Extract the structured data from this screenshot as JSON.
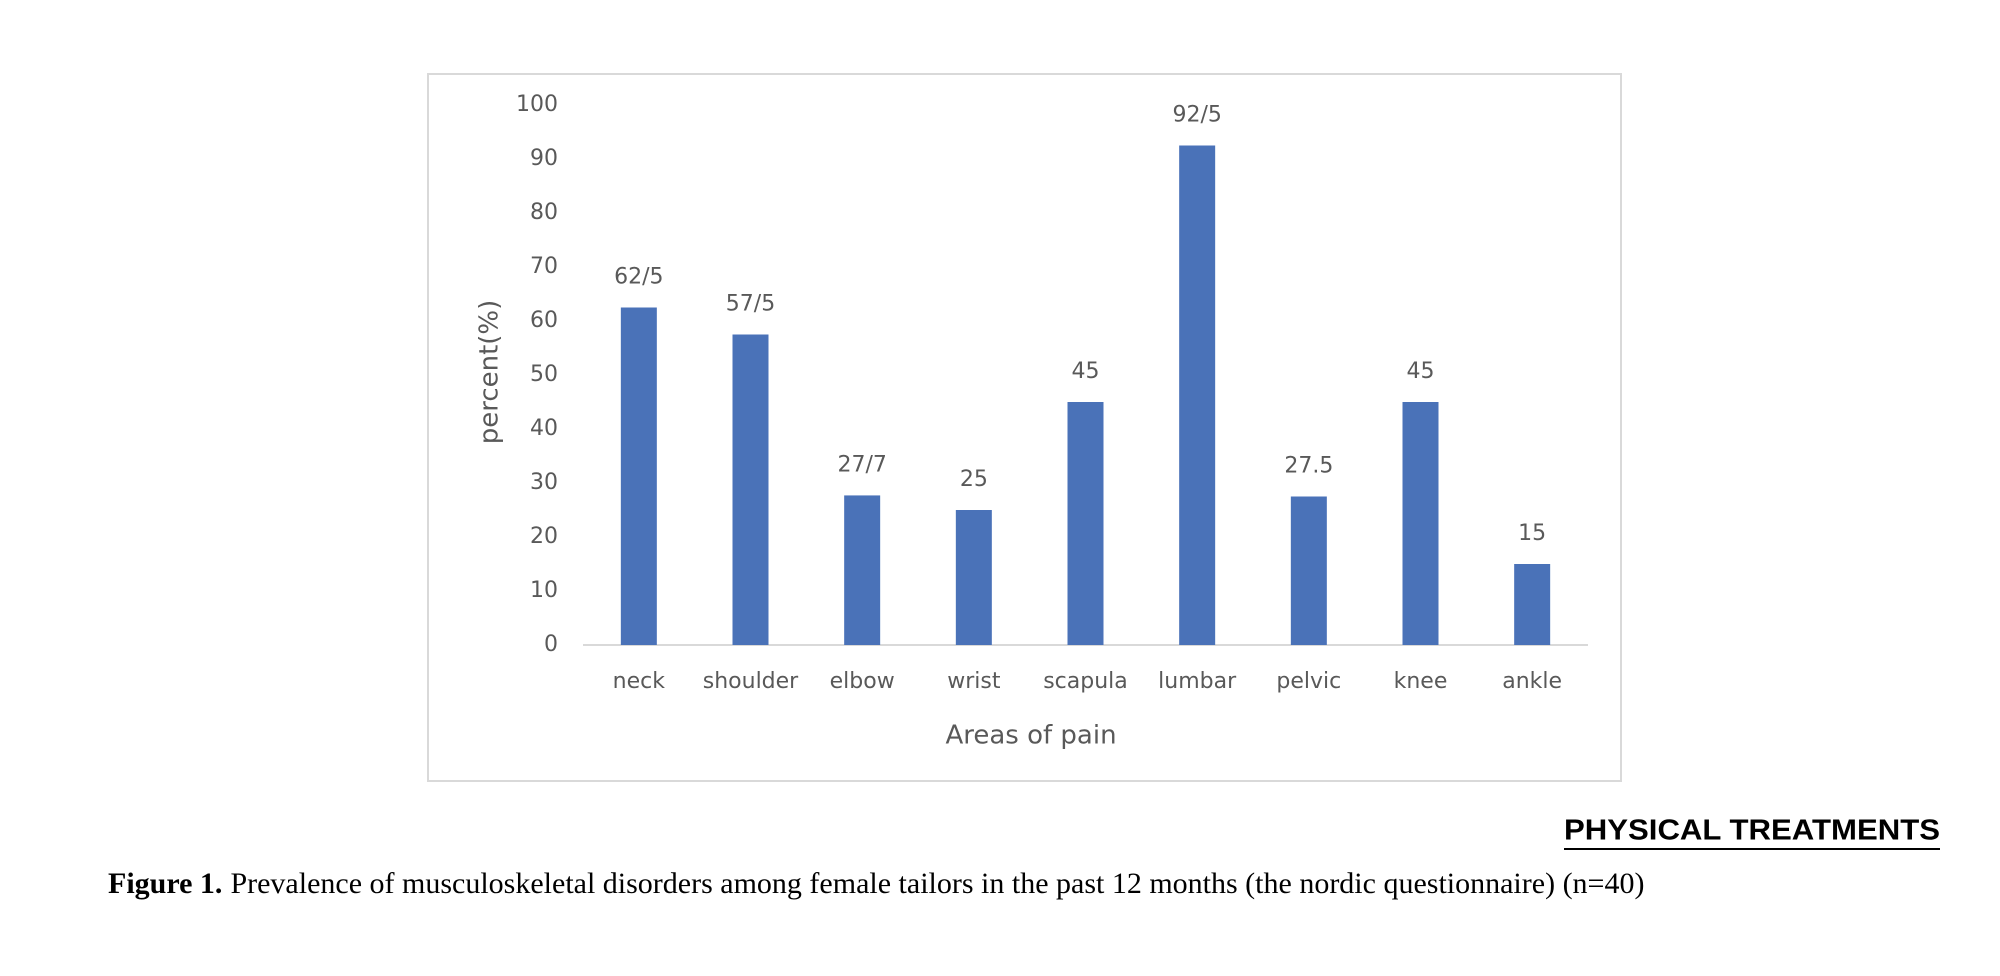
{
  "chart_data": {
    "type": "bar",
    "categories": [
      "neck",
      "shoulder",
      "elbow",
      "wrist",
      "scapula",
      "lumbar",
      "pelvic",
      "knee",
      "ankle"
    ],
    "values": [
      62.5,
      57.5,
      27.7,
      25,
      45,
      92.5,
      27.5,
      45,
      15
    ],
    "value_labels": [
      "62/5",
      "57/5",
      "27/7",
      "25",
      "45",
      "92/5",
      "27.5",
      "45",
      "15"
    ],
    "color": "#4a72b8",
    "ylim": [
      0,
      100
    ],
    "yticks": [
      0,
      10,
      20,
      30,
      40,
      50,
      60,
      70,
      80,
      90,
      100
    ],
    "ylabel": "percent(%)",
    "xlabel": "Areas of pain",
    "grid": false
  },
  "logo": "PHYSICAL TREATMENTS",
  "caption": {
    "label": "Figure 1.",
    "text": "Prevalence of musculoskeletal disorders among female tailors in the past 12 months (the nordic questionnaire) (n=40)"
  }
}
